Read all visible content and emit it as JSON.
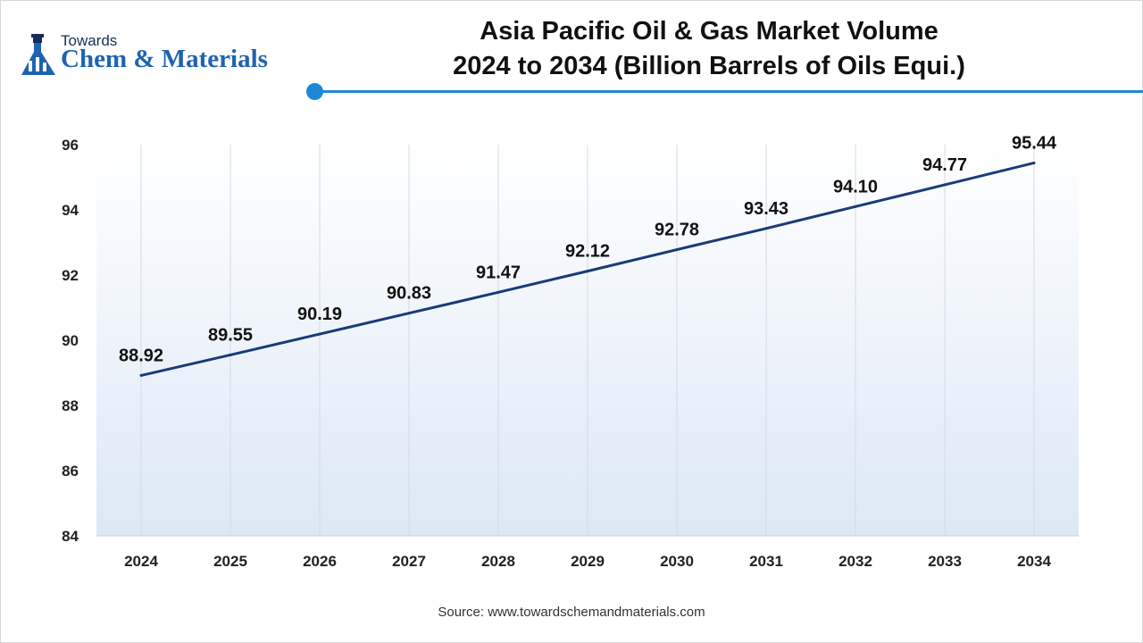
{
  "logo": {
    "top_text": "Towards",
    "main_text": "Chem & Materials"
  },
  "title_line1": "Asia Pacific Oil & Gas Market Volume",
  "title_line2": "2024 to 2034 (Billion Barrels of Oils Equi.)",
  "source": "Source: www.towardschemandmaterials.com",
  "colors": {
    "line": "#1a3a7a",
    "accent": "#1e88d6",
    "area_gradient_top": "#ffffff",
    "area_gradient_bottom": "#dce8f6"
  },
  "chart_data": {
    "type": "line",
    "title": "Asia Pacific Oil & Gas Market Volume 2024 to 2034 (Billion Barrels of Oils Equi.)",
    "categories": [
      "2024",
      "2025",
      "2026",
      "2027",
      "2028",
      "2029",
      "2030",
      "2031",
      "2032",
      "2033",
      "2034"
    ],
    "values": [
      88.92,
      89.55,
      90.19,
      90.83,
      91.47,
      92.12,
      92.78,
      93.43,
      94.1,
      94.77,
      95.44
    ],
    "data_labels": [
      "88.92",
      "89.55",
      "90.19",
      "90.83",
      "91.47",
      "92.12",
      "92.78",
      "93.43",
      "94.10",
      "94.77",
      "95.44"
    ],
    "y_ticks": [
      84,
      86,
      88,
      90,
      92,
      94,
      96
    ],
    "ylim": [
      84,
      96
    ],
    "vertical_grid": true,
    "legend": "none"
  }
}
